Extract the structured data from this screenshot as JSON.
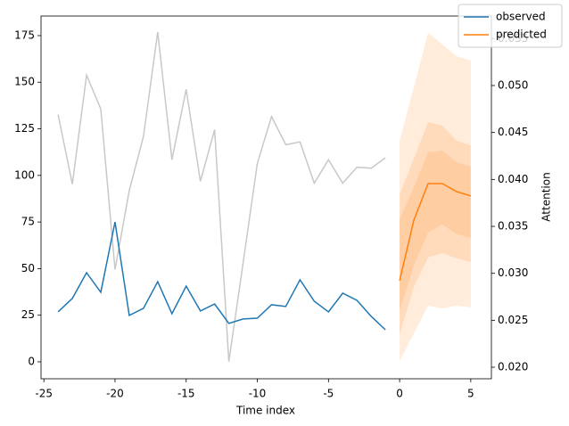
{
  "chart_data": {
    "type": "line",
    "xlabel": "Time index",
    "y2label": "Attention",
    "xlim": [
      -25.2,
      6.45
    ],
    "xticks": [
      -25,
      -20,
      -15,
      -10,
      -5,
      0,
      5
    ],
    "ylim": [
      -9.1,
      185.5
    ],
    "yticks": [
      0,
      25,
      50,
      75,
      100,
      125,
      150,
      175
    ],
    "y2lim": [
      0.01877,
      0.0574
    ],
    "y2ticks": [
      {
        "value": 0.02,
        "label": "0.020"
      },
      {
        "value": 0.025,
        "label": "0.025"
      },
      {
        "value": 0.03,
        "label": "0.030"
      },
      {
        "value": 0.035,
        "label": "0.035"
      },
      {
        "value": 0.04,
        "label": "0.040"
      },
      {
        "value": 0.045,
        "label": "0.045"
      },
      {
        "value": 0.05,
        "label": "0.050"
      },
      {
        "value": 0.055,
        "label": "0.055"
      }
    ],
    "legend": "upper right",
    "series": [
      {
        "name": "observed",
        "color": "#1f77b4",
        "x": [
          -24,
          -23,
          -22,
          -21,
          -20,
          -19,
          -18,
          -17,
          -16,
          -15,
          -14,
          -13,
          -12,
          -11,
          -10,
          -9,
          -8,
          -7,
          -6,
          -5,
          -4,
          -3,
          -2,
          -1
        ],
        "values": [
          26.8,
          34,
          47.8,
          37.3,
          75,
          24.9,
          28.7,
          43,
          25.8,
          40.6,
          27.3,
          31,
          20.6,
          23,
          23.4,
          30.6,
          29.7,
          44,
          32.5,
          26.8,
          36.8,
          33,
          24.4,
          17.2
        ]
      },
      {
        "name": "predicted",
        "color": "#ff7f0e",
        "x": [
          0,
          1,
          2,
          3,
          4,
          5
        ],
        "values": [
          43.5,
          76,
          95.6,
          95.6,
          91.3,
          89
        ]
      },
      {
        "axis": "y2",
        "color": "#c8c8c8",
        "x": [
          -24,
          -23,
          -22,
          -21,
          -20,
          -19,
          -18,
          -17,
          -16,
          -15,
          -14,
          -13,
          -12,
          -11,
          -10,
          -9,
          -8,
          -7,
          -6,
          -5,
          -4,
          -3,
          -2,
          -1
        ],
        "values": [
          0.0469,
          0.0395,
          0.0511,
          0.0475,
          0.0304,
          0.0388,
          0.0446,
          0.0557,
          0.0421,
          0.0496,
          0.0398,
          0.0453,
          0.0206,
          0.0311,
          0.0417,
          0.0467,
          0.0437,
          0.044,
          0.0396,
          0.0421,
          0.0396,
          0.0413,
          0.0412,
          0.0423
        ]
      }
    ],
    "bands": [
      {
        "color": "#ff7f0e",
        "x": [
          0,
          1,
          2,
          3,
          4,
          5
        ],
        "lower": [
          0.5,
          15.3,
          30.1,
          28.7,
          30.1,
          29.2
        ],
        "upper": [
          118.6,
          147.3,
          176.5,
          170.3,
          164,
          161.6
        ]
      },
      {
        "color": "#ff7f0e",
        "x": [
          0,
          1,
          2,
          3,
          4,
          5
        ],
        "lower": [
          14.8,
          40.2,
          56,
          58.3,
          55.5,
          53.6
        ],
        "upper": [
          89.9,
          109,
          128.6,
          126.7,
          118.6,
          116.2
        ]
      },
      {
        "color": "#ff7f0e",
        "x": [
          0,
          1,
          2,
          3,
          4,
          5
        ],
        "lower": [
          27.7,
          51.6,
          69.3,
          73.6,
          68.4,
          66.5
        ],
        "upper": [
          76.5,
          93.7,
          112.4,
          113.3,
          107.1,
          104.7
        ]
      }
    ]
  }
}
